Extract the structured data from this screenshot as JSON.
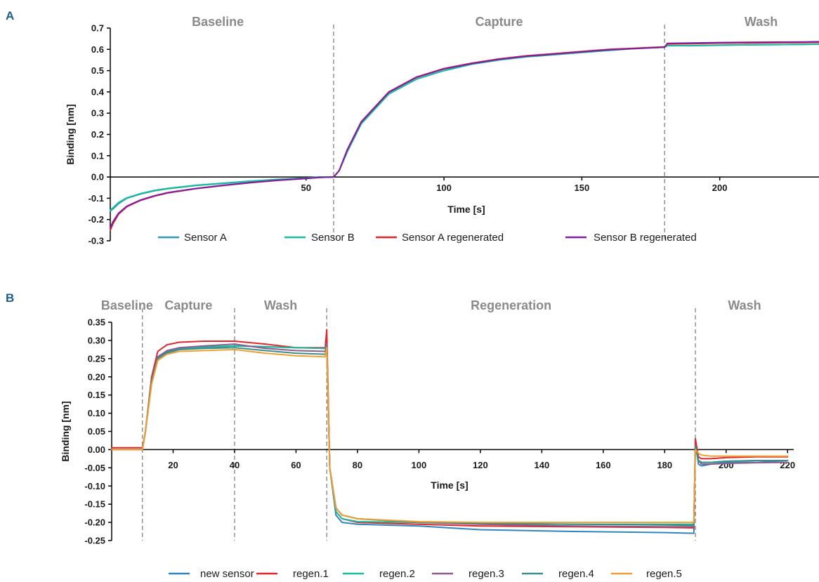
{
  "chart_data": [
    {
      "panel": "A",
      "type": "line",
      "panel_color": "#1f5c8b",
      "xlabel": "Time [s]",
      "ylabel": "Binding [nm]",
      "xlim": [
        -21,
        236
      ],
      "ylim": [
        -0.3,
        0.7
      ],
      "xticks": [
        50,
        100,
        150,
        200
      ],
      "yticks": [
        -0.3,
        -0.2,
        -0.1,
        0.0,
        0.1,
        0.2,
        0.3,
        0.4,
        0.5,
        0.6,
        0.7
      ],
      "ytick_decimals": 1,
      "grid": false,
      "legend_position": "bottom",
      "phases": [
        {
          "label": "Baseline",
          "x": 18
        },
        {
          "label": "Capture",
          "x": 120
        },
        {
          "label": "Wash",
          "x": 215
        }
      ],
      "phase_boundaries": [
        60,
        180
      ],
      "series": [
        {
          "name": "Sensor A",
          "color": "#2b9ab3",
          "x": [
            -21,
            -20,
            -18,
            -15,
            -10,
            -5,
            0,
            10,
            20,
            30,
            40,
            50,
            55,
            60,
            62,
            65,
            70,
            80,
            90,
            100,
            110,
            120,
            130,
            140,
            150,
            160,
            170,
            180,
            181,
            190,
            200,
            210,
            220,
            230,
            236
          ],
          "y": [
            -0.16,
            -0.15,
            -0.125,
            -0.1,
            -0.08,
            -0.065,
            -0.055,
            -0.04,
            -0.03,
            -0.02,
            -0.012,
            -0.005,
            0.0,
            0.0,
            0.03,
            0.12,
            0.25,
            0.39,
            0.46,
            0.5,
            0.53,
            0.55,
            0.565,
            0.575,
            0.585,
            0.595,
            0.605,
            0.61,
            0.617,
            0.617,
            0.619,
            0.621,
            0.622,
            0.623,
            0.625
          ]
        },
        {
          "name": "Sensor B",
          "color": "#1abc9c",
          "x": [
            -21,
            -20,
            -18,
            -15,
            -10,
            -5,
            0,
            10,
            20,
            30,
            40,
            50,
            55,
            60,
            62,
            65,
            70,
            80,
            90,
            100,
            110,
            120,
            130,
            140,
            150,
            160,
            170,
            180,
            181,
            190,
            200,
            210,
            220,
            230,
            236
          ],
          "y": [
            -0.155,
            -0.145,
            -0.12,
            -0.098,
            -0.078,
            -0.063,
            -0.053,
            -0.039,
            -0.029,
            -0.019,
            -0.011,
            -0.005,
            0.0,
            0.0,
            0.03,
            0.12,
            0.25,
            0.39,
            0.46,
            0.5,
            0.53,
            0.55,
            0.565,
            0.575,
            0.585,
            0.595,
            0.605,
            0.61,
            0.617,
            0.618,
            0.62,
            0.621,
            0.622,
            0.623,
            0.624
          ]
        },
        {
          "name": "Sensor A regenerated",
          "color": "#e3242b",
          "x": [
            -21,
            -20,
            -18,
            -15,
            -10,
            -5,
            0,
            10,
            20,
            30,
            40,
            50,
            55,
            60,
            62,
            65,
            70,
            80,
            90,
            100,
            110,
            120,
            130,
            140,
            150,
            160,
            170,
            180,
            181,
            190,
            200,
            210,
            220,
            230,
            236
          ],
          "y": [
            -0.25,
            -0.22,
            -0.175,
            -0.14,
            -0.11,
            -0.09,
            -0.075,
            -0.055,
            -0.04,
            -0.027,
            -0.016,
            -0.007,
            -0.002,
            0.0,
            0.03,
            0.13,
            0.26,
            0.4,
            0.47,
            0.51,
            0.535,
            0.555,
            0.57,
            0.58,
            0.59,
            0.6,
            0.606,
            0.612,
            0.625,
            0.627,
            0.629,
            0.63,
            0.631,
            0.632,
            0.633
          ]
        },
        {
          "name": "Sensor B regenerated",
          "color": "#7b1fa2",
          "x": [
            -21,
            -20,
            -18,
            -15,
            -10,
            -5,
            0,
            10,
            20,
            30,
            40,
            50,
            55,
            60,
            62,
            65,
            70,
            80,
            90,
            100,
            110,
            120,
            130,
            140,
            150,
            160,
            170,
            180,
            181,
            190,
            200,
            210,
            220,
            230,
            236
          ],
          "y": [
            -0.24,
            -0.21,
            -0.17,
            -0.137,
            -0.108,
            -0.088,
            -0.073,
            -0.054,
            -0.039,
            -0.026,
            -0.015,
            -0.007,
            -0.002,
            0.0,
            0.03,
            0.128,
            0.258,
            0.398,
            0.468,
            0.508,
            0.533,
            0.553,
            0.568,
            0.578,
            0.588,
            0.598,
            0.604,
            0.61,
            0.628,
            0.63,
            0.632,
            0.633,
            0.634,
            0.635,
            0.636
          ]
        }
      ]
    },
    {
      "panel": "B",
      "type": "line",
      "panel_color": "#1f5c8b",
      "xlabel": "Time [s]",
      "ylabel": "Binding [nm]",
      "xlim": [
        0,
        222
      ],
      "ylim": [
        -0.25,
        0.35
      ],
      "xticks": [
        20,
        40,
        60,
        80,
        100,
        120,
        140,
        160,
        180,
        200,
        220
      ],
      "yticks": [
        -0.25,
        -0.2,
        -0.15,
        -0.1,
        -0.05,
        0.0,
        0.05,
        0.1,
        0.15,
        0.2,
        0.25,
        0.3,
        0.35
      ],
      "ytick_decimals": 2,
      "grid": false,
      "legend_position": "bottom",
      "phases": [
        {
          "label": "Baseline",
          "x": 5
        },
        {
          "label": "Capture",
          "x": 25
        },
        {
          "label": "Wash",
          "x": 55
        },
        {
          "label": "Regeneration",
          "x": 130
        },
        {
          "label": "Wash",
          "x": 206
        }
      ],
      "phase_boundaries": [
        10,
        40,
        70,
        190
      ],
      "series": [
        {
          "name": "new sensor",
          "color": "#2e86c1",
          "x": [
            0,
            10,
            11,
            13,
            15,
            18,
            22,
            30,
            40,
            50,
            60,
            69.5,
            70,
            71,
            73,
            75,
            80,
            100,
            120,
            150,
            180,
            189.5,
            190,
            191,
            192,
            195,
            200,
            210,
            220
          ],
          "y": [
            0.0,
            0.0,
            0.05,
            0.2,
            0.25,
            0.265,
            0.275,
            0.28,
            0.285,
            0.283,
            0.28,
            0.278,
            0.3,
            -0.05,
            -0.18,
            -0.2,
            -0.205,
            -0.21,
            -0.22,
            -0.225,
            -0.228,
            -0.23,
            0.02,
            -0.04,
            -0.045,
            -0.04,
            -0.035,
            -0.035,
            -0.03
          ]
        },
        {
          "name": "regen.1",
          "color": "#e3242b",
          "x": [
            0,
            10,
            11,
            13,
            15,
            18,
            22,
            30,
            40,
            50,
            60,
            69.5,
            70,
            71,
            73,
            75,
            80,
            100,
            120,
            150,
            180,
            189.5,
            190,
            191,
            192,
            195,
            200,
            210,
            220
          ],
          "y": [
            0.005,
            0.005,
            0.05,
            0.2,
            0.27,
            0.288,
            0.295,
            0.298,
            0.298,
            0.29,
            0.28,
            0.28,
            0.33,
            -0.05,
            -0.17,
            -0.19,
            -0.2,
            -0.205,
            -0.21,
            -0.212,
            -0.214,
            -0.215,
            0.03,
            -0.02,
            -0.025,
            -0.025,
            -0.022,
            -0.02,
            -0.02
          ]
        },
        {
          "name": "regen.2",
          "color": "#1abc9c",
          "x": [
            0,
            10,
            11,
            13,
            15,
            18,
            22,
            30,
            40,
            50,
            60,
            69.5,
            70,
            71,
            73,
            75,
            80,
            100,
            120,
            150,
            180,
            189.5,
            190,
            191,
            192,
            195,
            200,
            210,
            220
          ],
          "y": [
            0.0,
            0.0,
            0.05,
            0.19,
            0.255,
            0.27,
            0.278,
            0.282,
            0.285,
            0.282,
            0.28,
            0.278,
            0.29,
            -0.05,
            -0.17,
            -0.19,
            -0.198,
            -0.2,
            -0.202,
            -0.205,
            -0.205,
            -0.205,
            0.01,
            -0.03,
            -0.035,
            -0.035,
            -0.032,
            -0.03,
            -0.03
          ]
        },
        {
          "name": "regen.3",
          "color": "#8e5b8c",
          "x": [
            0,
            10,
            11,
            13,
            15,
            18,
            22,
            30,
            40,
            50,
            60,
            69.5,
            70,
            71,
            73,
            75,
            80,
            100,
            120,
            150,
            180,
            189.5,
            190,
            191,
            192,
            195,
            200,
            210,
            220
          ],
          "y": [
            0.0,
            0.0,
            0.05,
            0.19,
            0.255,
            0.272,
            0.28,
            0.285,
            0.29,
            0.278,
            0.272,
            0.27,
            0.29,
            -0.05,
            -0.16,
            -0.18,
            -0.19,
            -0.2,
            -0.205,
            -0.21,
            -0.212,
            -0.212,
            0.01,
            -0.03,
            -0.04,
            -0.04,
            -0.038,
            -0.036,
            -0.035
          ]
        },
        {
          "name": "regen.4",
          "color": "#3a8f8a",
          "x": [
            0,
            10,
            11,
            13,
            15,
            18,
            22,
            30,
            40,
            50,
            60,
            69.5,
            70,
            71,
            73,
            75,
            80,
            100,
            120,
            150,
            180,
            189.5,
            190,
            191,
            192,
            195,
            200,
            210,
            220
          ],
          "y": [
            0.0,
            0.0,
            0.05,
            0.185,
            0.25,
            0.268,
            0.275,
            0.278,
            0.28,
            0.272,
            0.265,
            0.262,
            0.28,
            -0.05,
            -0.16,
            -0.18,
            -0.19,
            -0.2,
            -0.203,
            -0.205,
            -0.207,
            -0.208,
            0.01,
            -0.03,
            -0.035,
            -0.035,
            -0.032,
            -0.03,
            -0.03
          ]
        },
        {
          "name": "regen.5",
          "color": "#f0a030",
          "x": [
            0,
            10,
            11,
            13,
            15,
            18,
            22,
            30,
            40,
            50,
            60,
            69.5,
            70,
            71,
            73,
            75,
            80,
            100,
            120,
            150,
            180,
            189.5,
            190,
            191,
            192,
            195,
            200,
            210,
            220
          ],
          "y": [
            0.0,
            0.0,
            0.05,
            0.18,
            0.245,
            0.262,
            0.27,
            0.272,
            0.275,
            0.265,
            0.258,
            0.255,
            0.28,
            -0.05,
            -0.16,
            -0.18,
            -0.19,
            -0.198,
            -0.2,
            -0.2,
            -0.2,
            -0.2,
            0.0,
            -0.01,
            -0.015,
            -0.018,
            -0.018,
            -0.018,
            -0.018
          ]
        }
      ]
    }
  ]
}
